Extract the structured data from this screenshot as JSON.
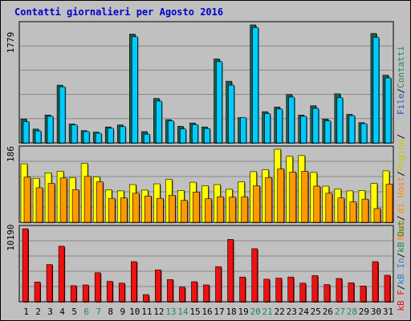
{
  "title": "Contatti giornalieri per Agosto 2016",
  "colors": {
    "frame": "#c0c0c0",
    "plot_bg": "#c0c0c0",
    "grid": "#888888",
    "visits": "#00ccff",
    "visits_shadow": "#1b5d4d",
    "pages": "#ffff00",
    "pages_shadow": "#4c4c00",
    "hits": "#ff9900",
    "hits_shadow": "#4c2a00",
    "kb": "#ee1111",
    "kb_shadow": "#4c0000",
    "weekday_label": "#000000",
    "weekend_label": "#1d8a55"
  },
  "legend": {
    "contatti": {
      "text": "Contatti",
      "color": "#1d8a55"
    },
    "sep1": {
      "text": "/",
      "color": "#000000"
    },
    "file": {
      "text": "File",
      "color": "#1455c8"
    },
    "sep2": {
      "text": "/",
      "color": "#000000"
    },
    "pagine": {
      "text": "Pagine",
      "color": "#c8c800"
    },
    "sep3": {
      "text": "/",
      "color": "#000000"
    },
    "host": {
      "text": "Nomi di Host",
      "color": "#ff8800"
    },
    "sep4": {
      "text": "/",
      "color": "#000000"
    },
    "kbin": {
      "text": "kB In",
      "color": "#2a7fd4"
    },
    "sep5": {
      "text": "/",
      "color": "#000000"
    },
    "kbout": {
      "text": "kB Out",
      "color": "#1d8a55"
    },
    "sep6": {
      "text": "/",
      "color": "#000000"
    },
    "kbf": {
      "text": "kB F",
      "color": "#ee1111"
    }
  },
  "chart_data": {
    "type": "bar",
    "categories": [
      "1",
      "2",
      "3",
      "4",
      "5",
      "6",
      "7",
      "8",
      "9",
      "10",
      "11",
      "12",
      "13",
      "14",
      "15",
      "16",
      "17",
      "18",
      "19",
      "20",
      "21",
      "22",
      "23",
      "24",
      "25",
      "26",
      "27",
      "28",
      "29",
      "30",
      "31"
    ],
    "weekend_days": [
      "6",
      "7",
      "13",
      "14",
      "20",
      "21",
      "27",
      "28"
    ],
    "panels": [
      {
        "name": "top",
        "max_label": "1779",
        "max": 1779,
        "series": [
          {
            "values": [
              360,
              208,
              420,
              870,
              285,
              185,
              163,
              240,
              270,
              1640,
              170,
              670,
              350,
              250,
              300,
              240,
              1265,
              930,
              380,
              1779,
              470,
              540,
              730,
              420,
              560,
              360,
              740,
              430,
              305,
              1650,
              1020
            ]
          },
          {
            "values": [
              320,
              180,
              400,
              845,
              270,
              170,
              145,
              220,
              245,
              1600,
              130,
              630,
              330,
              210,
              275,
              215,
              1225,
              870,
              380,
              1740,
              440,
              510,
              690,
              400,
              520,
              330,
              680,
              410,
              290,
              1590,
              980
            ]
          }
        ]
      },
      {
        "name": "middle",
        "max_label": "186",
        "max": 186,
        "series": [
          {
            "values": [
              149,
              112,
              126,
              130,
              114,
              150,
              116,
              83,
              80,
              96,
              82,
              98,
              109,
              81,
              102,
              93,
              96,
              84,
              103,
              129,
              134,
              186,
              168,
              170,
              127,
              92,
              85,
              80,
              81,
              99,
              131
            ]
          },
          {
            "values": [
              115,
              88,
              99,
              113,
              83,
              117,
              103,
              61,
              62,
              74,
              67,
              61,
              69,
              56,
              77,
              60,
              65,
              64,
              65,
              93,
              114,
              136,
              128,
              130,
              92,
              74,
              62,
              52,
              59,
              35,
              97
            ]
          }
        ]
      },
      {
        "name": "bottom",
        "max_label": "10190",
        "max": 10190,
        "series": [
          {
            "values": [
              10190,
              2750,
              5200,
              7750,
              2250,
              2350,
              4050,
              2850,
              2600,
              5600,
              1000,
              4450,
              3100,
              2050,
              2800,
              2350,
              4900,
              8700,
              3450,
              7400,
              3150,
              3300,
              3450,
              2600,
              3650,
              2400,
              3250,
              2650,
              2200,
              5600,
              3700
            ]
          }
        ]
      }
    ]
  }
}
